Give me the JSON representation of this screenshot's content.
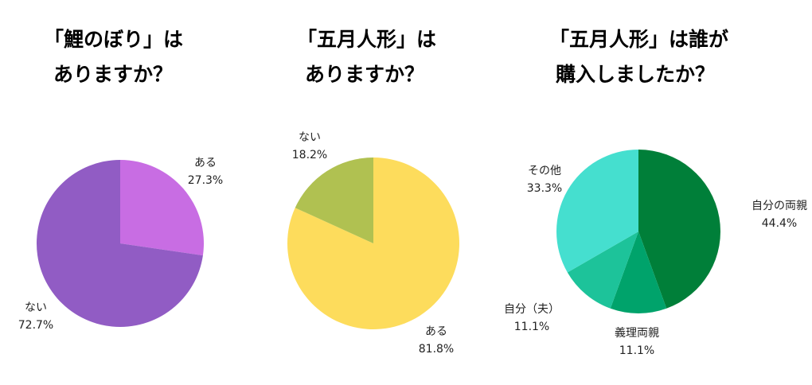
{
  "chart_data": [
    {
      "type": "pie",
      "title_lines": [
        "「鯉のぼり」は",
        "ありますか？"
      ],
      "slices": [
        {
          "label": "ある",
          "value": 27.3,
          "value_label": "27.3%",
          "color": "#C86DE3"
        },
        {
          "label": "ない",
          "value": 72.7,
          "value_label": "72.7%",
          "color": "#915CC4"
        }
      ]
    },
    {
      "type": "pie",
      "title_lines": [
        "「五月人形」は",
        "ありますか？"
      ],
      "slices": [
        {
          "label": "ある",
          "value": 81.8,
          "value_label": "81.8%",
          "color": "#FDDC5C"
        },
        {
          "label": "ない",
          "value": 18.2,
          "value_label": "18.2%",
          "color": "#B0C151"
        }
      ]
    },
    {
      "type": "pie",
      "title_lines": [
        "「五月人形」は誰が",
        "購入しましたか？"
      ],
      "slices": [
        {
          "label": "自分の両親",
          "value": 44.4,
          "value_label": "44.4%",
          "color": "#007F39"
        },
        {
          "label": "義理両親",
          "value": 11.1,
          "value_label": "11.1%",
          "color": "#00A36B"
        },
        {
          "label": "自分（夫）",
          "value": 11.1,
          "value_label": "11.1%",
          "color": "#1DC39A"
        },
        {
          "label": "その他",
          "value": 33.3,
          "value_label": "33.3%",
          "color": "#45DFCF"
        }
      ]
    }
  ]
}
